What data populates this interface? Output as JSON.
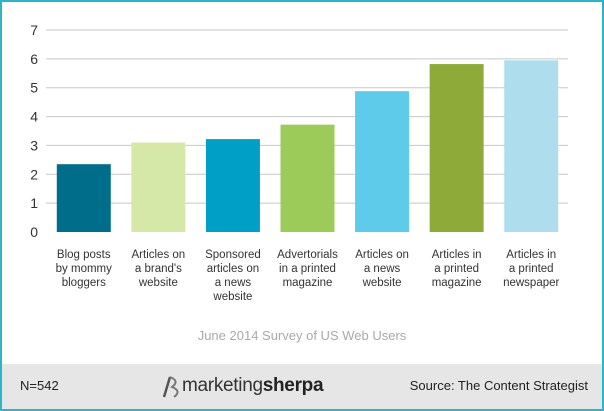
{
  "chart_data": {
    "type": "bar",
    "categories": [
      [
        "Blog posts",
        "by mommy",
        "bloggers"
      ],
      [
        "Articles on",
        "a brand's",
        "website"
      ],
      [
        "Sponsored",
        "articles on",
        "a news",
        "website"
      ],
      [
        "Advertorials",
        "in a printed",
        "magazine"
      ],
      [
        "Articles on",
        "a news",
        "website"
      ],
      [
        "Articles in",
        "a printed",
        "magazine"
      ],
      [
        "Articles in",
        "a printed",
        "newspaper"
      ]
    ],
    "values": [
      2.35,
      3.1,
      3.22,
      3.72,
      4.88,
      5.82,
      5.95
    ],
    "colors": [
      "#006d8b",
      "#d6e8a8",
      "#00a0c6",
      "#9ccb59",
      "#5fcbeb",
      "#8eab3a",
      "#aedeed"
    ],
    "ylim": [
      0,
      7
    ],
    "yticks": [
      0,
      1,
      2,
      3,
      4,
      5,
      6,
      7
    ],
    "grid": true,
    "caption": "June 2014 Survey of US Web Users"
  },
  "footer": {
    "n": "N=542",
    "logo_light": "marketing",
    "logo_bold": "sherpa",
    "source": "Source: The Content Strategist"
  }
}
